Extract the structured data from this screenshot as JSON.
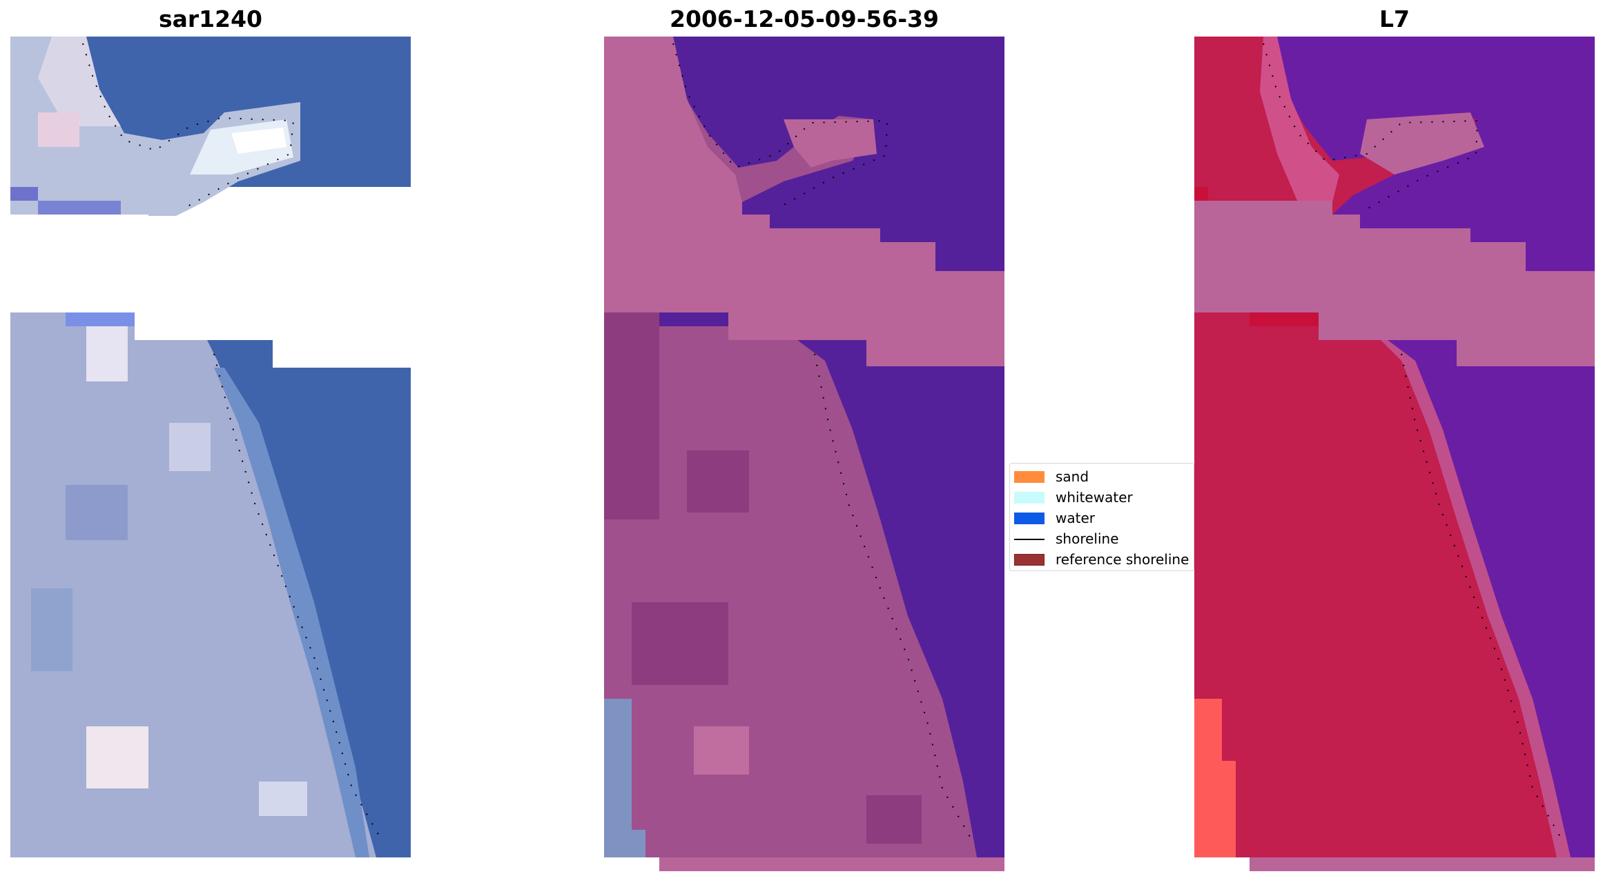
{
  "panels": [
    {
      "title": "sar1240",
      "type": "rgb-image",
      "palette": [
        "#3a5fa8",
        "#4266ad",
        "#8a9fcc",
        "#b8c2dd",
        "#e8e6f0",
        "#ffffff"
      ]
    },
    {
      "title": "2006-12-05-09-56-39",
      "type": "classified-image",
      "palette": [
        "#54219a",
        "#b9659a",
        "#8c3c7f",
        "#a0508d"
      ]
    },
    {
      "title": "L7",
      "type": "index-image",
      "palette": [
        "#6a1ea4",
        "#c21e4e",
        "#b9659a",
        "#ff5a5a"
      ]
    }
  ],
  "legend": {
    "items": [
      {
        "label": "sand",
        "color": "#ff8c3a",
        "kind": "patch"
      },
      {
        "label": "whitewater",
        "color": "#c8fbfb",
        "kind": "patch"
      },
      {
        "label": "water",
        "color": "#0d5ae6",
        "kind": "patch"
      },
      {
        "label": "shoreline",
        "color": "#000000",
        "kind": "line"
      },
      {
        "label": "reference shoreline",
        "color": "#993333",
        "kind": "patch"
      }
    ]
  },
  "shoreline_style": {
    "color": "#000000",
    "dash": "dotted"
  }
}
